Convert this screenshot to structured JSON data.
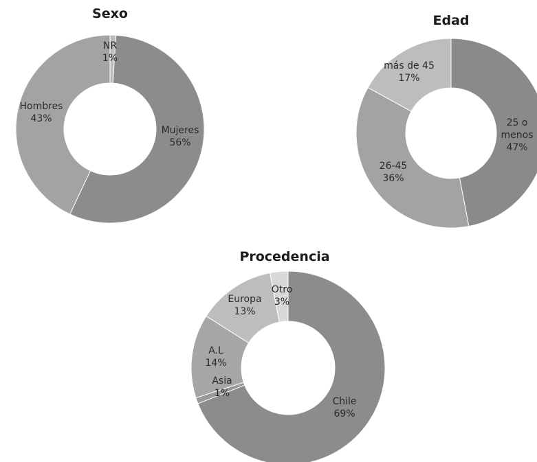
{
  "chart_data": [
    {
      "type": "pie",
      "variant": "donut",
      "title": "Sexo",
      "slices": [
        {
          "name": "NR",
          "value": 1,
          "percent_label": "1%",
          "color": "#bcbcbc"
        },
        {
          "name": "Mujeres",
          "value": 56,
          "percent_label": "56%",
          "color": "#8c8c8c"
        },
        {
          "name": "Hombres",
          "value": 43,
          "percent_label": "43%",
          "color": "#a3a3a3"
        }
      ]
    },
    {
      "type": "pie",
      "variant": "donut",
      "title": "Edad",
      "slices": [
        {
          "name": "25 o menos",
          "label_lines": [
            "25 o",
            "menos"
          ],
          "value": 47,
          "percent_label": "47%",
          "color": "#8a8a8a"
        },
        {
          "name": "26-45",
          "value": 36,
          "percent_label": "36%",
          "color": "#a3a3a3"
        },
        {
          "name": "más de 45",
          "value": 17,
          "percent_label": "17%",
          "color": "#bdbdbd"
        }
      ]
    },
    {
      "type": "pie",
      "variant": "donut",
      "title": "Procedencia",
      "slices": [
        {
          "name": "Chile",
          "value": 69,
          "percent_label": "69%",
          "color": "#8c8c8c"
        },
        {
          "name": "Asia",
          "value": 1,
          "percent_label": "1%",
          "color": "#989898"
        },
        {
          "name": "A.L",
          "value": 14,
          "percent_label": "14%",
          "color": "#a6a6a6"
        },
        {
          "name": "Europa",
          "value": 13,
          "percent_label": "13%",
          "color": "#bdbdbd"
        },
        {
          "name": "Otro",
          "value": 3,
          "percent_label": "3%",
          "color": "#d8d8d8"
        }
      ]
    }
  ]
}
